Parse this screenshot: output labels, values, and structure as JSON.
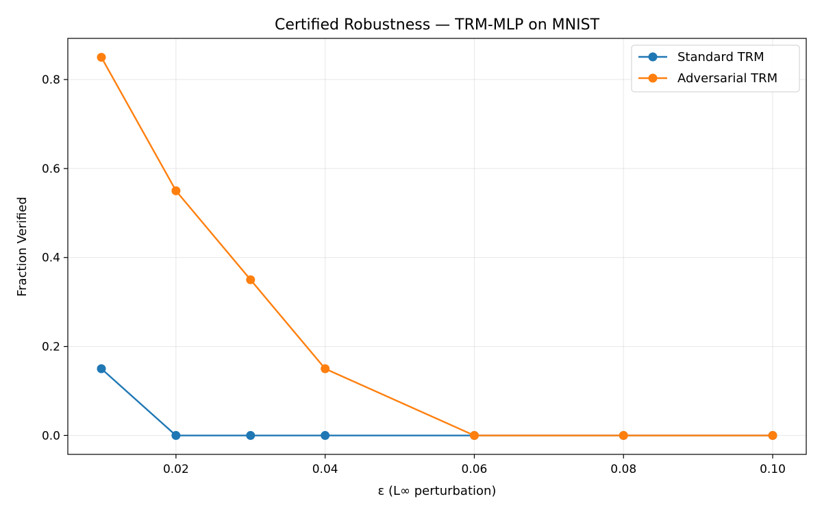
{
  "chart_data": {
    "type": "line",
    "title": "Certified Robustness — TRM-MLP on MNIST",
    "xlabel": "ε (L∞ perturbation)",
    "ylabel": "Fraction Verified",
    "x": [
      0.01,
      0.02,
      0.03,
      0.04,
      0.06,
      0.08,
      0.1
    ],
    "xlim": [
      0.0055,
      0.1045
    ],
    "ylim": [
      -0.0425,
      0.8925
    ],
    "xticks": [
      0.02,
      0.04,
      0.06,
      0.08,
      0.1
    ],
    "xtick_labels": [
      "0.02",
      "0.04",
      "0.06",
      "0.08",
      "0.10"
    ],
    "yticks": [
      0.0,
      0.2,
      0.4,
      0.6,
      0.8
    ],
    "ytick_labels": [
      "0.0",
      "0.2",
      "0.4",
      "0.6",
      "0.8"
    ],
    "grid": true,
    "legend_position": "top-right",
    "series": [
      {
        "name": "Standard TRM",
        "color": "#1f77b4",
        "marker": "circle",
        "values": [
          0.15,
          0.0,
          0.0,
          0.0,
          0.0,
          0.0,
          0.0
        ]
      },
      {
        "name": "Adversarial TRM",
        "color": "#ff7f0e",
        "marker": "circle",
        "values": [
          0.85,
          0.55,
          0.35,
          0.15,
          0.0,
          0.0,
          0.0
        ]
      }
    ]
  }
}
